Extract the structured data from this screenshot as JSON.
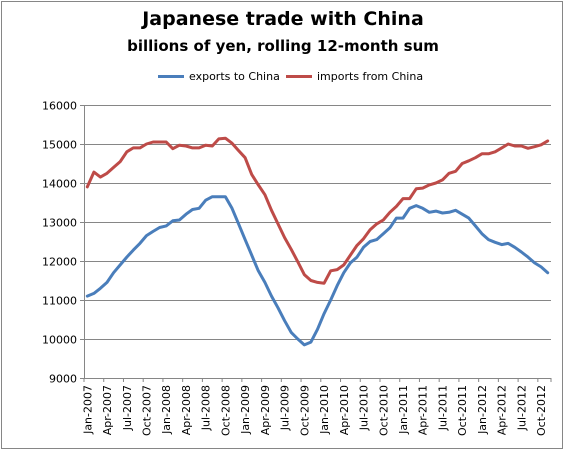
{
  "chart_data": {
    "type": "line",
    "title": "Japanese trade with China",
    "subtitle": "billions of yen, rolling 12-month sum",
    "xlabel": "",
    "ylabel": "",
    "ylim": [
      9000,
      16000
    ],
    "yticks": [
      9000,
      10000,
      11000,
      12000,
      13000,
      14000,
      15000,
      16000
    ],
    "grid": true,
    "legend_position": "top",
    "xtick_labels": [
      "Jan-2007",
      "Apr-2007",
      "Jul-2007",
      "Oct-2007",
      "Jan-2008",
      "Apr-2008",
      "Jul-2008",
      "Oct-2008",
      "Jan-2009",
      "Apr-2009",
      "Jul-2009",
      "Oct-2009",
      "Jan-2010",
      "Apr-2010",
      "Jul-2010",
      "Oct-2010",
      "Jan-2011",
      "Apr-2011",
      "Jul-2011",
      "Oct-2011",
      "Jan-2012",
      "Apr-2012",
      "Jul-2012",
      "Oct-2012"
    ],
    "x_start": "2007-01",
    "series": [
      {
        "name": "exports to China",
        "color": "#4a7ebb",
        "values": [
          11100,
          11170,
          11300,
          11450,
          11700,
          11900,
          12100,
          12280,
          12450,
          12650,
          12760,
          12860,
          12900,
          13030,
          13050,
          13200,
          13320,
          13350,
          13560,
          13650,
          13650,
          13650,
          13350,
          12950,
          12550,
          12150,
          11750,
          11450,
          11100,
          10800,
          10470,
          10170,
          10000,
          9850,
          9920,
          10250,
          10650,
          11000,
          11370,
          11700,
          11950,
          12100,
          12350,
          12500,
          12550,
          12700,
          12850,
          13100,
          13100,
          13350,
          13420,
          13350,
          13250,
          13280,
          13230,
          13250,
          13300,
          13200,
          13100,
          12900,
          12700,
          12550,
          12480,
          12420,
          12450,
          12350,
          12230,
          12100,
          11950,
          11850,
          11700
        ]
      },
      {
        "name": "imports from China",
        "color": "#be4b48",
        "values": [
          13900,
          14280,
          14150,
          14250,
          14400,
          14550,
          14800,
          14900,
          14900,
          15000,
          15050,
          15050,
          15050,
          14880,
          14970,
          14950,
          14900,
          14900,
          14970,
          14950,
          15130,
          15150,
          15020,
          14830,
          14650,
          14220,
          13950,
          13700,
          13300,
          12950,
          12600,
          12300,
          11980,
          11650,
          11500,
          11450,
          11430,
          11750,
          11780,
          11900,
          12150,
          12400,
          12570,
          12800,
          12950,
          13050,
          13250,
          13400,
          13600,
          13600,
          13850,
          13870,
          13950,
          14000,
          14080,
          14250,
          14300,
          14500,
          14570,
          14650,
          14750,
          14750,
          14800,
          14900,
          15000,
          14950,
          14950,
          14890,
          14930,
          14980,
          15080
        ]
      }
    ]
  }
}
